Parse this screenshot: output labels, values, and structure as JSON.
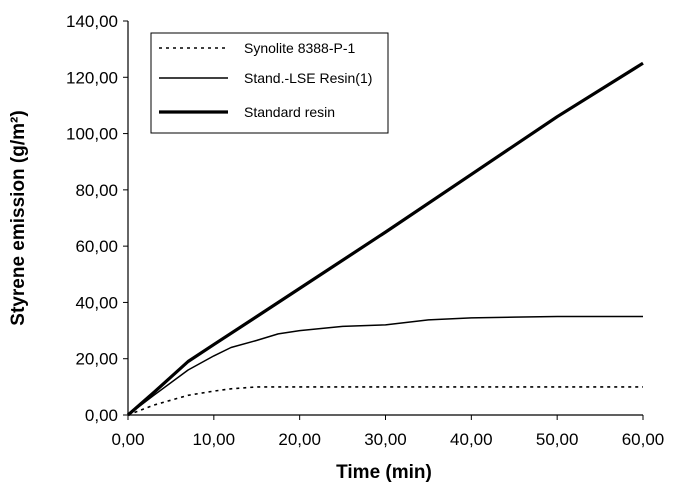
{
  "chart_data": {
    "type": "line",
    "title": "",
    "xlabel": "Time (min)",
    "ylabel": "Styrene emission (g/m²)",
    "xlim": [
      0,
      60
    ],
    "ylim": [
      0,
      140
    ],
    "x_ticks": [
      "0,00",
      "10,00",
      "20,00",
      "30,00",
      "40,00",
      "50,00",
      "60,00"
    ],
    "y_ticks": [
      "0,00",
      "20,00",
      "40,00",
      "60,00",
      "80,00",
      "100,00",
      "120,00",
      "140,00"
    ],
    "x_tick_values": [
      0,
      10,
      20,
      30,
      40,
      50,
      60
    ],
    "y_tick_values": [
      0,
      20,
      40,
      60,
      80,
      100,
      120,
      140
    ],
    "grid": false,
    "legend_position": "top-left",
    "series": [
      {
        "name": "Synolite 8388-P-1",
        "style": "dotted",
        "color": "#000000",
        "x": [
          0,
          3,
          7,
          10,
          12,
          15,
          20,
          30,
          40,
          50,
          60
        ],
        "y": [
          0,
          3.5,
          7,
          8.5,
          9.3,
          10,
          10,
          10,
          10,
          10,
          10
        ]
      },
      {
        "name": "Stand.-LSE Resin(1)",
        "style": "thin",
        "color": "#000000",
        "x": [
          0,
          3,
          7,
          10,
          12,
          15,
          17.5,
          20,
          25,
          30,
          35,
          40,
          45,
          50,
          55,
          60
        ],
        "y": [
          0,
          7,
          16,
          21,
          24,
          26.5,
          28.8,
          30,
          31.5,
          32,
          33.8,
          34.5,
          34.8,
          35,
          35,
          35
        ]
      },
      {
        "name": "Standard resin",
        "style": "thick",
        "color": "#000000",
        "x": [
          0,
          3,
          7,
          10,
          15,
          20,
          30,
          40,
          50,
          60
        ],
        "y": [
          0,
          8,
          19,
          25,
          35,
          45,
          65,
          85.5,
          106,
          125
        ]
      }
    ]
  }
}
